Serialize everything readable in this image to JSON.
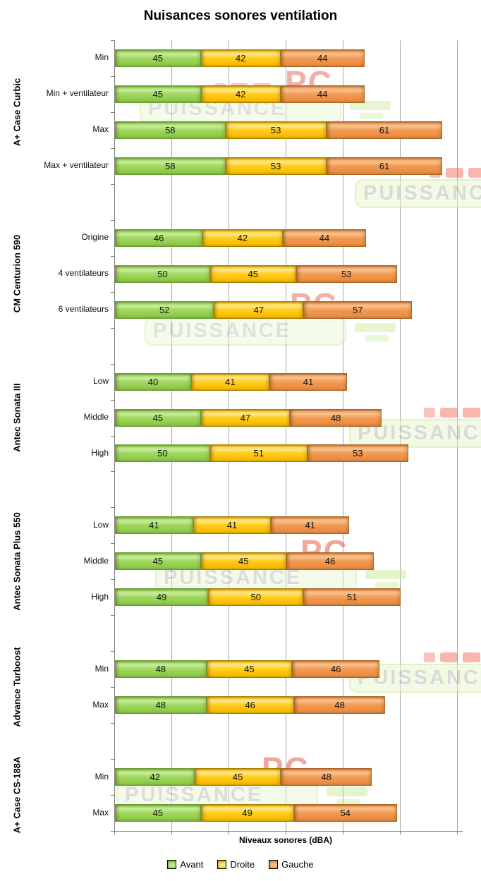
{
  "title": "Nuisances sonores ventilation",
  "watermark": {
    "brand": "PUISSANCE",
    "brand2": "PC"
  },
  "chart_data": {
    "type": "bar",
    "orientation": "horizontal",
    "stacked": true,
    "title": "Nuisances sonores ventilation",
    "xlabel": "Niveaux sonores (dBA)",
    "ylabel": "",
    "xlim": [
      0,
      180
    ],
    "grid_interval": 30,
    "grid": true,
    "axis_tick_labels_visible": false,
    "legend_position": "bottom",
    "series_names": [
      "Avant",
      "Droite",
      "Gauche"
    ],
    "series_colors": {
      "Avant": "#97D152",
      "Droite": "#FEC40D",
      "Gauche": "#EF924A"
    },
    "value_unit": "dBA",
    "groups": [
      {
        "name": "A+ Case Curbic",
        "rows": [
          {
            "label": "Min",
            "values": [
              45,
              42,
              44
            ]
          },
          {
            "label": "Min + ventilateur",
            "values": [
              45,
              42,
              44
            ]
          },
          {
            "label": "Max",
            "values": [
              58,
              53,
              61
            ]
          },
          {
            "label": "Max + ventilateur",
            "values": [
              58,
              53,
              61
            ]
          }
        ]
      },
      {
        "name": "CM Centurion 590",
        "rows": [
          {
            "label": "Origine",
            "values": [
              46,
              42,
              44
            ]
          },
          {
            "label": "4 ventilateurs",
            "values": [
              50,
              45,
              53
            ]
          },
          {
            "label": "6 ventilateurs",
            "values": [
              52,
              47,
              57
            ]
          }
        ]
      },
      {
        "name": "Antec Sonata III",
        "rows": [
          {
            "label": "Low",
            "values": [
              40,
              41,
              41
            ]
          },
          {
            "label": "Middle",
            "values": [
              45,
              47,
              48
            ]
          },
          {
            "label": "High",
            "values": [
              50,
              51,
              53
            ]
          }
        ]
      },
      {
        "name": "Antec Sonata Plus 550",
        "rows": [
          {
            "label": "Low",
            "values": [
              41,
              41,
              41
            ]
          },
          {
            "label": "Middle",
            "values": [
              45,
              45,
              46
            ]
          },
          {
            "label": "High",
            "values": [
              49,
              50,
              51
            ]
          }
        ]
      },
      {
        "name": "Advance Turboost",
        "rows": [
          {
            "label": "Min",
            "values": [
              48,
              45,
              46
            ]
          },
          {
            "label": "Max",
            "values": [
              48,
              46,
              48
            ]
          }
        ]
      },
      {
        "name": "A+ Case CS-188A",
        "rows": [
          {
            "label": "Min",
            "values": [
              42,
              45,
              48
            ]
          },
          {
            "label": "Max",
            "values": [
              45,
              49,
              54
            ]
          }
        ]
      }
    ],
    "legend": [
      "Avant",
      "Droite",
      "Gauche"
    ]
  }
}
